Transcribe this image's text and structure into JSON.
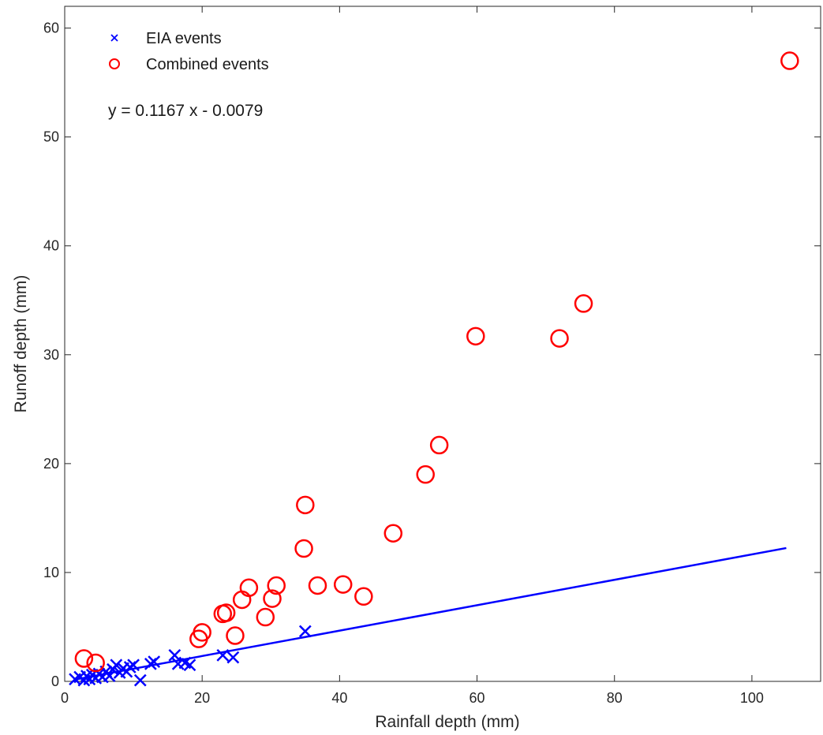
{
  "chart_data": {
    "type": "scatter",
    "xlabel": "Rainfall depth (mm)",
    "ylabel": "Runoff depth (mm)",
    "xlim": [
      0,
      110
    ],
    "ylim": [
      0,
      62
    ],
    "xticks": [
      0,
      20,
      40,
      60,
      80,
      100
    ],
    "yticks": [
      0,
      10,
      20,
      30,
      40,
      50,
      60
    ],
    "grid": false,
    "legend_position": "top-left",
    "annotation": "y = 0.1167 x - 0.0079",
    "series": [
      {
        "name": "EIA events",
        "marker": "x",
        "color": "#0000ff",
        "points": [
          [
            1.5,
            0.2
          ],
          [
            2.2,
            0.4
          ],
          [
            2.8,
            0.1
          ],
          [
            3.2,
            0.5
          ],
          [
            3.6,
            0.2
          ],
          [
            4.0,
            0.6
          ],
          [
            4.5,
            0.3
          ],
          [
            5.0,
            0.7
          ],
          [
            5.5,
            0.4
          ],
          [
            6.0,
            0.9
          ],
          [
            6.5,
            0.5
          ],
          [
            7.0,
            1.1
          ],
          [
            7.5,
            1.5
          ],
          [
            8.0,
            0.8
          ],
          [
            8.5,
            1.2
          ],
          [
            9.0,
            0.9
          ],
          [
            9.5,
            1.3
          ],
          [
            10.0,
            1.5
          ],
          [
            11.0,
            0.1
          ],
          [
            12.5,
            1.6
          ],
          [
            13.0,
            1.8
          ],
          [
            16.0,
            2.4
          ],
          [
            16.5,
            1.6
          ],
          [
            17.5,
            1.7
          ],
          [
            18.2,
            1.5
          ],
          [
            23.0,
            2.4
          ],
          [
            24.5,
            2.2
          ],
          [
            35.0,
            4.6
          ]
        ]
      },
      {
        "name": "Combined events",
        "marker": "o",
        "color": "#ff0000",
        "points": [
          [
            2.8,
            2.1
          ],
          [
            4.5,
            1.7
          ],
          [
            19.5,
            3.9
          ],
          [
            20.0,
            4.5
          ],
          [
            23.0,
            6.2
          ],
          [
            23.5,
            6.3
          ],
          [
            24.8,
            4.2
          ],
          [
            25.8,
            7.5
          ],
          [
            26.8,
            8.6
          ],
          [
            29.2,
            5.9
          ],
          [
            30.2,
            7.6
          ],
          [
            30.8,
            8.8
          ],
          [
            34.8,
            12.2
          ],
          [
            35.0,
            16.2
          ],
          [
            36.8,
            8.8
          ],
          [
            40.5,
            8.9
          ],
          [
            43.5,
            7.8
          ],
          [
            47.8,
            13.6
          ],
          [
            52.5,
            19.0
          ],
          [
            54.5,
            21.7
          ],
          [
            59.8,
            31.7
          ],
          [
            72.0,
            31.5
          ],
          [
            75.5,
            34.7
          ],
          [
            105.5,
            57.0
          ]
        ]
      },
      {
        "kind": "fit-line",
        "color": "#0000ff",
        "slope": 0.1167,
        "intercept": -0.0079,
        "x_range": [
          1.5,
          105
        ]
      }
    ]
  },
  "legend": {
    "items": [
      {
        "label": "EIA events",
        "marker": "x",
        "color": "#0000ff"
      },
      {
        "label": "Combined events",
        "marker": "o",
        "color": "#ff0000"
      }
    ]
  }
}
